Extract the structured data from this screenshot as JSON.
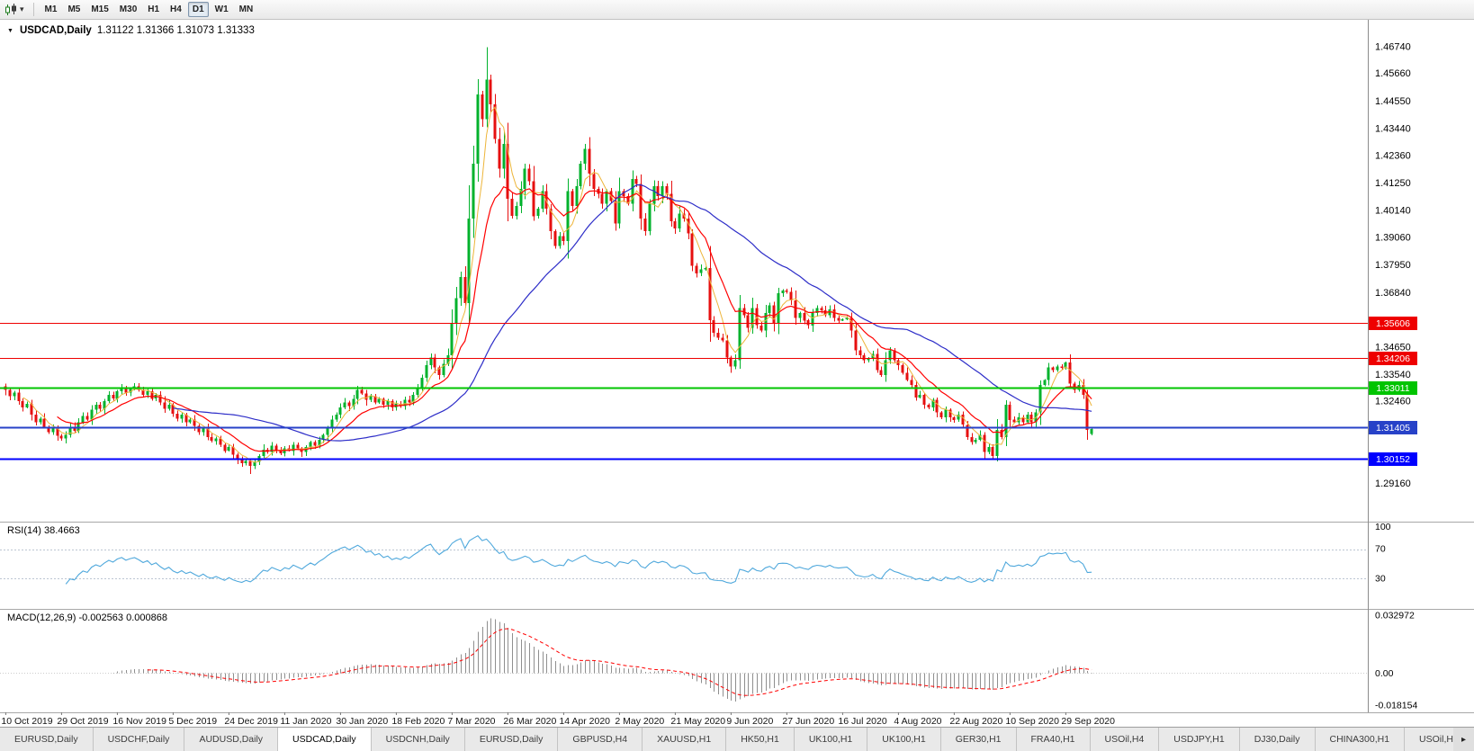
{
  "colors": {
    "up": "#00B22C",
    "down": "#E60F0F",
    "ma_fast": "#EDB53A",
    "ma_mid": "#FF0000",
    "ma_slow": "#2D2DC8",
    "rsi": "#4FA8DC",
    "macd_hist": "#8F8F8F",
    "macd_signal": "#FF0000"
  },
  "icons": {
    "title_marker": "▼",
    "toolbar_caret": "▾"
  },
  "toolbar": {
    "timeframes": [
      "M1",
      "M5",
      "M15",
      "M30",
      "H1",
      "H4",
      "D1",
      "W1",
      "MN"
    ],
    "active_timeframe": "D1"
  },
  "chart": {
    "title_symbol": "USDCAD,Daily",
    "title_values": "1.31122 1.31366 1.31073 1.31333",
    "ohlc": {
      "open": "1.31122",
      "high": "1.31366",
      "low": "1.31073",
      "close": "1.31333"
    },
    "price_axis": [
      "1.46740",
      "1.45660",
      "1.44550",
      "1.43440",
      "1.42360",
      "1.41250",
      "1.40140",
      "1.39060",
      "1.37950",
      "1.36840",
      "1.34650",
      "1.33540",
      "1.32460",
      "1.29160"
    ],
    "hlines": [
      {
        "price": 1.35606,
        "label": "1.35606",
        "color": "#EE0000",
        "width": 1
      },
      {
        "price": 1.34206,
        "label": "1.34206",
        "color": "#EE0000",
        "width": 1
      },
      {
        "price": 1.33011,
        "label": "1.33011",
        "color": "#00C400",
        "width": 2
      },
      {
        "price": 1.31405,
        "label": "1.31405",
        "color": "#2742C8",
        "width": 2
      },
      {
        "price": 1.30152,
        "label": "1.30152",
        "color": "#0000FF",
        "width": 2
      }
    ]
  },
  "rsi": {
    "label": "RSI(14) 38.4663",
    "levels": [
      {
        "value": 100,
        "label": "100"
      },
      {
        "value": 70,
        "label": "70"
      },
      {
        "value": 30,
        "label": "30"
      }
    ]
  },
  "macd": {
    "label": "MACD(12,26,9) -0.002563 0.000868",
    "axis": [
      {
        "value": 0.032972,
        "label": "0.032972"
      },
      {
        "value": 0,
        "label": "0.00"
      },
      {
        "value": -0.018154,
        "label": "-0.018154"
      }
    ]
  },
  "tabs": {
    "items": [
      "EURUSD,Daily",
      "USDCHF,Daily",
      "AUDUSD,Daily",
      "USDCAD,Daily",
      "USDCNH,Daily",
      "EURUSD,Daily",
      "GBPUSD,H4",
      "XAUUSD,H1",
      "HK50,H1",
      "UK100,H1",
      "UK100,H1",
      "GER30,H1",
      "FRA40,H1",
      "USOil,H4",
      "USDJPY,H1",
      "DJ30,Daily",
      "CHINA300,H1",
      "USOil,H1"
    ],
    "active_index": 3,
    "overflow_arrow": "▸"
  },
  "chart_data": {
    "type": "candlestick",
    "symbol": "USDCAD",
    "timeframe": "Daily",
    "title": "USDCAD,Daily 1.31122 1.31366 1.31073 1.31333",
    "x_labels": [
      "10 Oct 2019",
      "29 Oct 2019",
      "16 Nov 2019",
      "5 Dec 2019",
      "24 Dec 2019",
      "11 Jan 2020",
      "30 Jan 2020",
      "18 Feb 2020",
      "7 Mar 2020",
      "26 Mar 2020",
      "14 Apr 2020",
      "2 May 2020",
      "21 May 2020",
      "9 Jun 2020",
      "27 Jun 2020",
      "16 Jul 2020",
      "4 Aug 2020",
      "22 Aug 2020",
      "10 Sep 2020",
      "29 Sep 2020"
    ],
    "x_label_interval": 13,
    "y_range": [
      1.276,
      1.478
    ],
    "ma_periods": {
      "fast": 5,
      "mid": 13,
      "slow": 40
    },
    "closes": [
      1.329,
      1.3265,
      1.328,
      1.3245,
      1.322,
      1.3235,
      1.319,
      1.316,
      1.3175,
      1.314,
      1.312,
      1.3135,
      1.3105,
      1.3095,
      1.311,
      1.314,
      1.3125,
      1.316,
      1.3185,
      1.317,
      1.321,
      1.323,
      1.3215,
      1.3245,
      1.327,
      1.3255,
      1.3285,
      1.33,
      1.328,
      1.3295,
      1.3305,
      1.329,
      1.327,
      1.3285,
      1.3255,
      1.327,
      1.324,
      1.3215,
      1.323,
      1.3195,
      1.3175,
      1.319,
      1.316,
      1.317,
      1.3145,
      1.312,
      1.3135,
      1.31,
      1.3085,
      1.3095,
      1.307,
      1.3045,
      1.306,
      1.303,
      1.301,
      1.2995,
      1.3005,
      1.2985,
      1.3,
      1.3025,
      1.305,
      1.304,
      1.3065,
      1.305,
      1.3035,
      1.3055,
      1.3045,
      1.307,
      1.3055,
      1.304,
      1.306,
      1.308,
      1.3065,
      1.309,
      1.311,
      1.314,
      1.317,
      1.319,
      1.322,
      1.324,
      1.3225,
      1.3255,
      1.329,
      1.3275,
      1.325,
      1.3265,
      1.324,
      1.3255,
      1.323,
      1.3245,
      1.322,
      1.3235,
      1.3225,
      1.325,
      1.324,
      1.327,
      1.33,
      1.334,
      1.339,
      1.342,
      1.338,
      1.335,
      1.3395,
      1.343,
      1.356,
      1.366,
      1.3745,
      1.364,
      1.398,
      1.42,
      1.448,
      1.438,
      1.454,
      1.444,
      1.43,
      1.418,
      1.428,
      1.406,
      1.399,
      1.403,
      1.41,
      1.418,
      1.413,
      1.399,
      1.402,
      1.409,
      1.402,
      1.393,
      1.387,
      1.391,
      1.389,
      1.409,
      1.403,
      1.411,
      1.42,
      1.426,
      1.416,
      1.41,
      1.408,
      1.404,
      1.409,
      1.405,
      1.396,
      1.409,
      1.407,
      1.404,
      1.414,
      1.412,
      1.398,
      1.393,
      1.404,
      1.411,
      1.407,
      1.411,
      1.408,
      1.397,
      1.394,
      1.4,
      1.398,
      1.392,
      1.379,
      1.376,
      1.3775,
      1.378,
      1.357,
      1.352,
      1.35,
      1.349,
      1.342,
      1.3385,
      1.341,
      1.362,
      1.359,
      1.354,
      1.362,
      1.355,
      1.353,
      1.36,
      1.363,
      1.356,
      1.368,
      1.369,
      1.3685,
      1.365,
      1.358,
      1.36,
      1.357,
      1.355,
      1.36,
      1.362,
      1.361,
      1.359,
      1.3615,
      1.358,
      1.357,
      1.3575,
      1.358,
      1.353,
      1.345,
      1.343,
      1.341,
      1.3415,
      1.3435,
      1.337,
      1.335,
      1.341,
      1.345,
      1.341,
      1.339,
      1.336,
      1.333,
      1.331,
      1.326,
      1.327,
      1.323,
      1.322,
      1.325,
      1.32,
      1.318,
      1.321,
      1.318,
      1.317,
      1.319,
      1.315,
      1.31,
      1.308,
      1.309,
      1.311,
      1.304,
      1.306,
      1.3025,
      1.313,
      1.31,
      1.323,
      1.317,
      1.316,
      1.318,
      1.316,
      1.319,
      1.316,
      1.32,
      1.331,
      1.333,
      1.338,
      1.337,
      1.3385,
      1.338,
      1.34,
      1.3315,
      1.329,
      1.331,
      1.327,
      1.313,
      1.3133
    ]
  }
}
